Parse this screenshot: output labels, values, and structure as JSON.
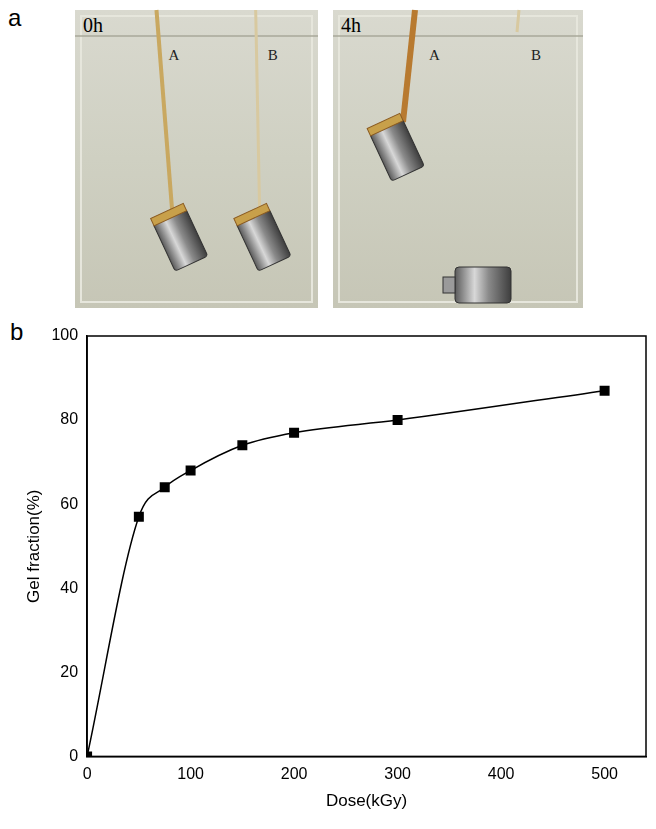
{
  "figure": {
    "panels": [
      {
        "letter": "a",
        "photos": [
          {
            "label": "0h",
            "markers": [
              "A",
              "B"
            ]
          },
          {
            "label": "4h",
            "markers": [
              "A",
              "B"
            ]
          }
        ]
      },
      {
        "letter": "b"
      }
    ]
  },
  "chart_data": {
    "type": "line",
    "x_label": "Dose(kGy)",
    "y_label": "Gel fraction(%)",
    "x": [
      0,
      50,
      75,
      100,
      150,
      200,
      300,
      500
    ],
    "values": [
      0,
      57,
      64,
      68,
      74,
      77,
      80,
      87
    ],
    "color": "#000000",
    "marker": "square",
    "line_style": "solid",
    "xlim": [
      0,
      540
    ],
    "xticks": [
      0,
      100,
      200,
      300,
      400,
      500
    ],
    "ylim": [
      0,
      100
    ],
    "yticks": [
      0,
      20,
      40,
      60,
      80,
      100
    ],
    "grid": false
  }
}
